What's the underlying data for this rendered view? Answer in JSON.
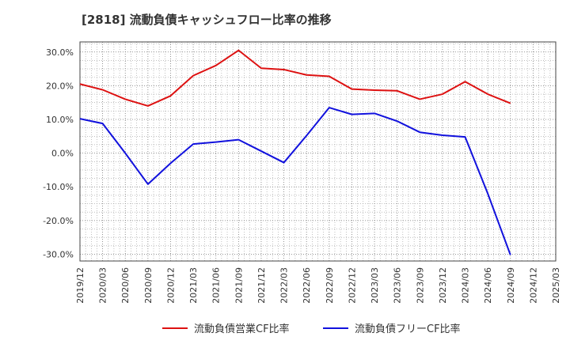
{
  "chart_data": {
    "type": "line",
    "title": "[2818]  流動負債キャッシュフロー比率の推移",
    "xlabel": "",
    "ylabel": "",
    "ylim": [
      -32,
      33
    ],
    "yticks": [
      30,
      20,
      10,
      0,
      -10,
      -20,
      -30
    ],
    "ytick_labels": [
      "30.0%",
      "20.0%",
      "10.0%",
      "0.0%",
      "-10.0%",
      "-20.0%",
      "-30.0%"
    ],
    "categories": [
      "2019/12",
      "2020/03",
      "2020/06",
      "2020/09",
      "2020/12",
      "2021/03",
      "2021/06",
      "2021/09",
      "2021/12",
      "2022/03",
      "2022/06",
      "2022/09",
      "2022/12",
      "2023/03",
      "2023/06",
      "2023/09",
      "2023/12",
      "2024/03",
      "2024/06",
      "2024/09",
      "2024/12",
      "2025/03"
    ],
    "grid": true,
    "legend_position": "bottom",
    "series": [
      {
        "name": "流動負債営業CF比率",
        "color": "#dd1111",
        "values": [
          20.5,
          18.8,
          16.0,
          14.0,
          17.0,
          23.0,
          26.0,
          30.5,
          25.2,
          24.8,
          23.2,
          22.8,
          19.0,
          18.7,
          18.5,
          16.0,
          17.5,
          21.2,
          17.5,
          14.8,
          null,
          null
        ]
      },
      {
        "name": "流動負債フリーCF比率",
        "color": "#1111dd",
        "values": [
          10.2,
          8.8,
          0.0,
          -9.2,
          -3.0,
          2.7,
          3.3,
          4.0,
          0.6,
          -2.8,
          5.2,
          13.5,
          11.5,
          11.8,
          9.5,
          6.2,
          5.3,
          4.8,
          -12.0,
          -30.2,
          null,
          null
        ]
      }
    ]
  }
}
